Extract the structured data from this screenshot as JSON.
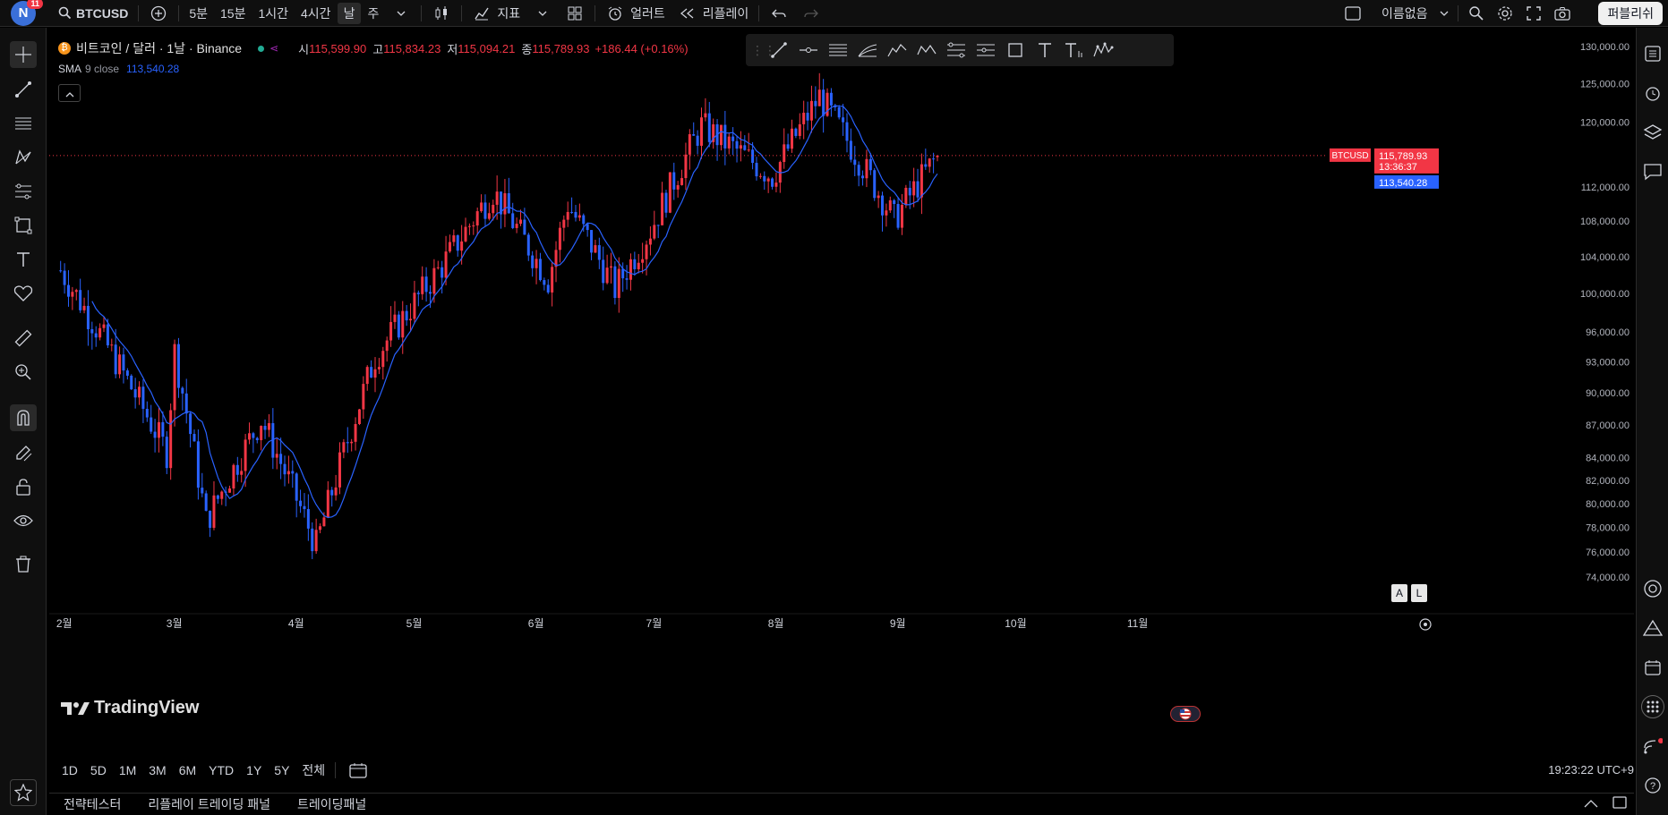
{
  "topbar": {
    "avatar_letter": "N",
    "notification_count": "11",
    "symbol": "BTCUSD",
    "intervals": [
      "5분",
      "15분",
      "1시간",
      "4시간",
      "날",
      "주"
    ],
    "active_interval": "날",
    "indicators_label": "지표",
    "alert_label": "얼러트",
    "replay_label": "리플레이",
    "layout_name": "이름없음",
    "publish_label": "퍼블리쉬"
  },
  "legend": {
    "title": "비트코인 / 달러 · 1날 · Binance",
    "open_label": "시",
    "open": "115,599.90",
    "high_label": "고",
    "high": "115,834.23",
    "low_label": "저",
    "low": "115,094.21",
    "close_label": "종",
    "close": "115,789.93",
    "change": "+186.44 (+0.16%)",
    "sma_label": "SMA",
    "sma_params": "9 close",
    "sma_value": "113,540.28"
  },
  "price_axis": {
    "ticks": [
      "130,000.00",
      "125,000.00",
      "120,000.00",
      "112,000.00",
      "108,000.00",
      "104,000.00",
      "100,000.00",
      "96,000.00",
      "93,000.00",
      "90,000.00",
      "87,000.00",
      "84,000.00",
      "82,000.00",
      "80,000.00",
      "78,000.00",
      "76,000.00",
      "74,000.00"
    ],
    "symbol_tag": "BTCUSD",
    "last_price": "115,789.93",
    "countdown": "13:36:37",
    "sma_price": "113,540.28"
  },
  "time_axis": {
    "labels": [
      "2월",
      "3월",
      "4월",
      "5월",
      "6월",
      "7월",
      "8월",
      "9월",
      "10월",
      "11월"
    ]
  },
  "range_bar": {
    "ranges": [
      "1D",
      "5D",
      "1M",
      "3M",
      "6M",
      "YTD",
      "1Y",
      "5Y",
      "전체"
    ],
    "clock": "19:23:22 UTC+9"
  },
  "panel_tabs": [
    "전략테스터",
    "리플레이 트레이딩 패널",
    "트레이딩패널"
  ],
  "brand": {
    "logo_text": "TradingView"
  },
  "scale_buttons": [
    "A",
    "L"
  ],
  "colors": {
    "up": "#f23645",
    "down": "#2962ff",
    "sma": "#2962ff",
    "background": "#000000"
  },
  "chart_data": {
    "type": "candlestick",
    "series": [
      {
        "name": "SMA 9 close",
        "type": "line"
      }
    ],
    "x_labels": [
      "2월",
      "3월",
      "4월",
      "5월",
      "6월",
      "7월",
      "8월",
      "9월",
      "10월",
      "11월"
    ],
    "ylim": [
      72000,
      131000
    ],
    "scale": "log",
    "key_points": [
      {
        "x": "2025-02-01",
        "close": 102500
      },
      {
        "x": "2025-02-28",
        "close": 84500
      },
      {
        "x": "2025-03-02",
        "close": 94000
      },
      {
        "x": "2025-03-10",
        "close": 78500
      },
      {
        "x": "2025-03-24",
        "close": 87500
      },
      {
        "x": "2025-04-07",
        "close": 76500
      },
      {
        "x": "2025-04-22",
        "close": 93500
      },
      {
        "x": "2025-05-09",
        "close": 103000
      },
      {
        "x": "2025-05-22",
        "close": 111500
      },
      {
        "x": "2025-06-05",
        "close": 101500
      },
      {
        "x": "2025-06-10",
        "close": 110000
      },
      {
        "x": "2025-06-22",
        "close": 100500
      },
      {
        "x": "2025-07-01",
        "close": 107000
      },
      {
        "x": "2025-07-14",
        "close": 119500
      },
      {
        "x": "2025-08-01",
        "close": 113300
      },
      {
        "x": "2025-08-13",
        "close": 123300
      },
      {
        "x": "2025-09-01",
        "close": 108200
      },
      {
        "x": "2025-09-12",
        "close": 115789.93
      }
    ]
  }
}
